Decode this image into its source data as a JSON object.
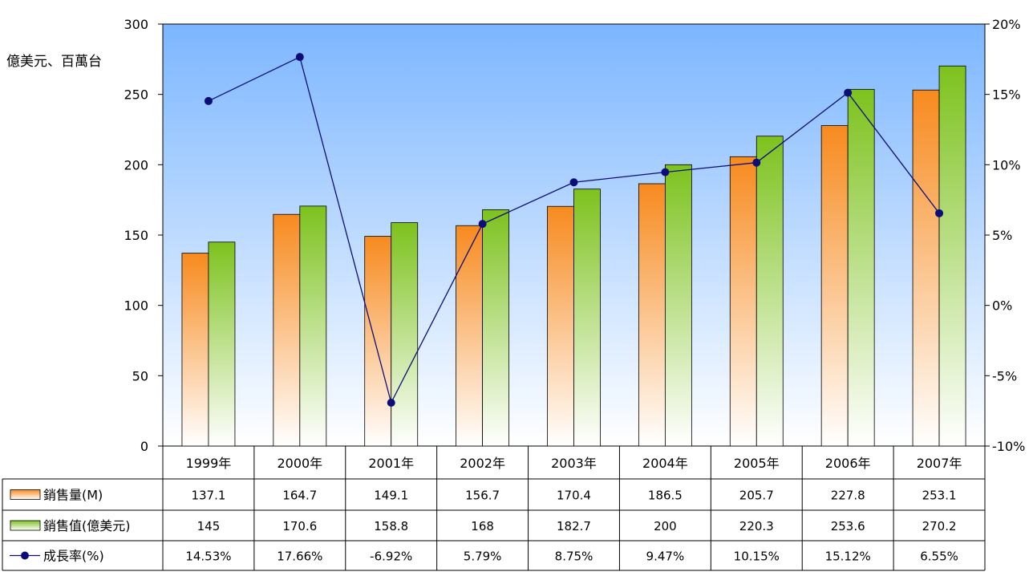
{
  "chart_data": {
    "type": "bar",
    "title": "",
    "ylabel": "億美元、百萬台",
    "ylim": [
      0,
      300
    ],
    "yticks": [
      "0",
      "50",
      "100",
      "150",
      "200",
      "250",
      "300"
    ],
    "y2lim": [
      -10,
      20
    ],
    "y2ticks": [
      "-10%",
      "-5%",
      "0%",
      "5%",
      "10%",
      "15%",
      "20%"
    ],
    "categories": [
      "1999年",
      "2000年",
      "2001年",
      "2002年",
      "2003年",
      "2004年",
      "2005年",
      "2006年",
      "2007年"
    ],
    "series": [
      {
        "name": "銷售量(M)",
        "type": "bar",
        "axis": "left",
        "color": "#f78a1e",
        "values": [
          137.1,
          164.7,
          149.1,
          156.7,
          170.4,
          186.5,
          205.7,
          227.8,
          253.1
        ],
        "labels": [
          "137.1",
          "164.7",
          "149.1",
          "156.7",
          "170.4",
          "186.5",
          "205.7",
          "227.8",
          "253.1"
        ]
      },
      {
        "name": "銷售值(億美元)",
        "type": "bar",
        "axis": "left",
        "color": "#7dc21e",
        "values": [
          145,
          170.6,
          158.8,
          168,
          182.7,
          200,
          220.3,
          253.6,
          270.2
        ],
        "labels": [
          "145",
          "170.6",
          "158.8",
          "168",
          "182.7",
          "200",
          "220.3",
          "253.6",
          "270.2"
        ]
      },
      {
        "name": "成長率(%)",
        "type": "line",
        "axis": "right",
        "color": "#0d0d7a",
        "values": [
          14.53,
          17.66,
          -6.92,
          5.79,
          8.75,
          9.47,
          10.15,
          15.12,
          6.55
        ],
        "labels": [
          "14.53%",
          "17.66%",
          "-6.92%",
          "5.79%",
          "8.75%",
          "9.47%",
          "10.15%",
          "15.12%",
          "6.55%"
        ]
      }
    ],
    "data_table": true,
    "plot_background": [
      "#7cb6ff",
      "#ffffff"
    ],
    "grid": false
  }
}
